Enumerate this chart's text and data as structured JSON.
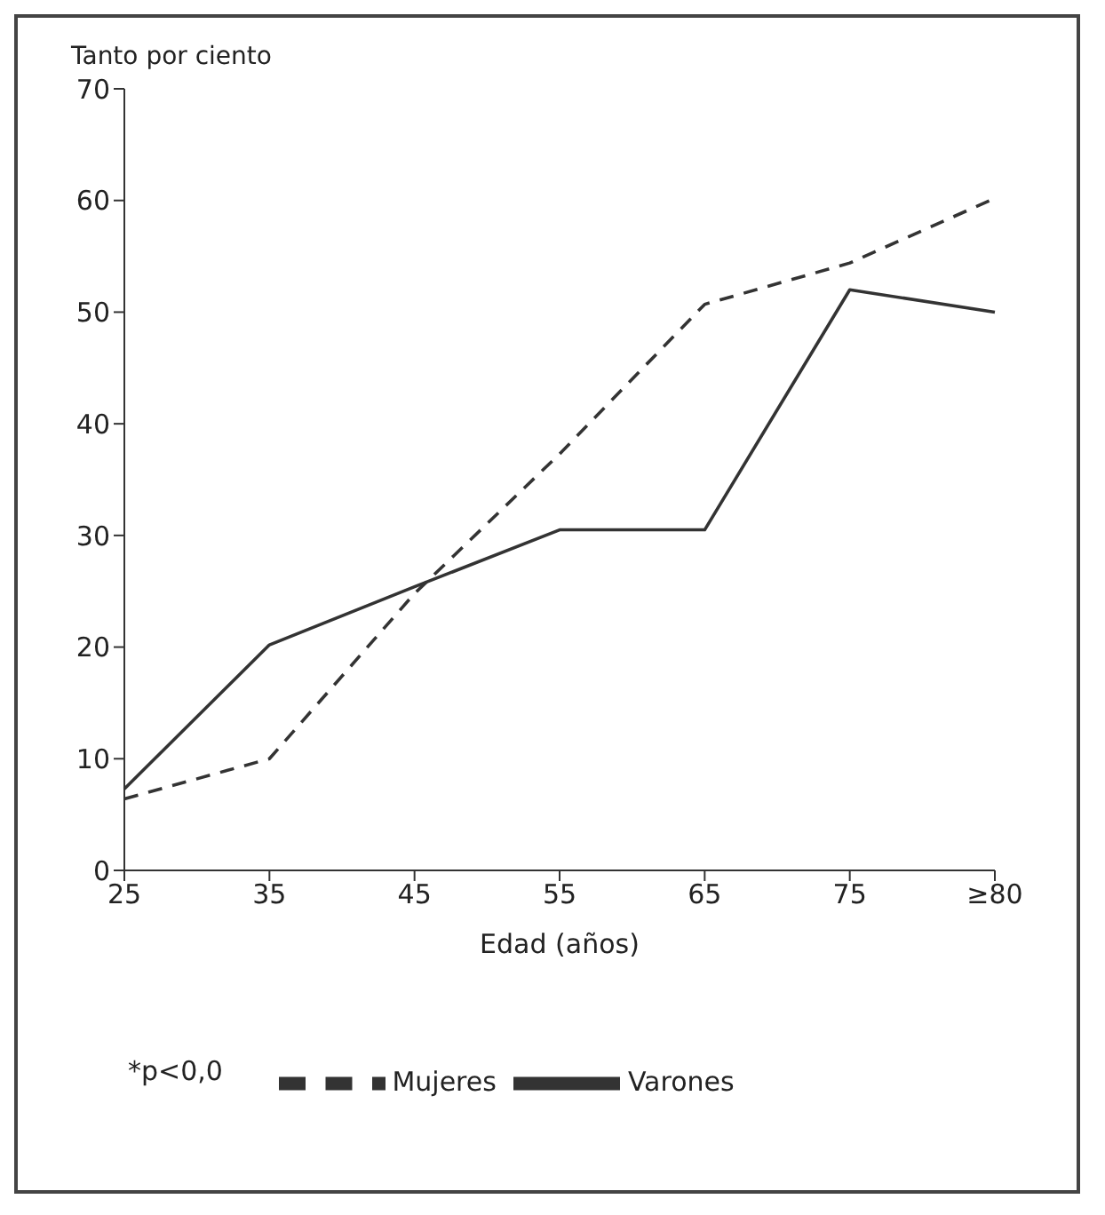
{
  "chart_data": {
    "type": "line",
    "ylabel": "Tanto por ciento",
    "xlabel": "Edad (años)",
    "categories": [
      "25",
      "35",
      "45",
      "55",
      "65",
      "75",
      "≥80"
    ],
    "series": [
      {
        "name": "Varones",
        "color": "#333333",
        "line_style": "solid",
        "values": [
          7.3,
          20.2,
          25.4,
          30.5,
          30.5,
          52,
          50
        ]
      },
      {
        "name": "Mujeres",
        "color": "#333333",
        "line_style": "dashed",
        "values": [
          6.4,
          10,
          24.8,
          37.3,
          50.7,
          54.4,
          60.2
        ]
      }
    ],
    "ylim": [
      0,
      70
    ],
    "yticks": [
      0,
      10,
      20,
      30,
      40,
      50,
      60,
      70
    ],
    "grid": false,
    "legend": "bottom",
    "marker": "none",
    "annotations": [
      "*p<0,0"
    ]
  }
}
